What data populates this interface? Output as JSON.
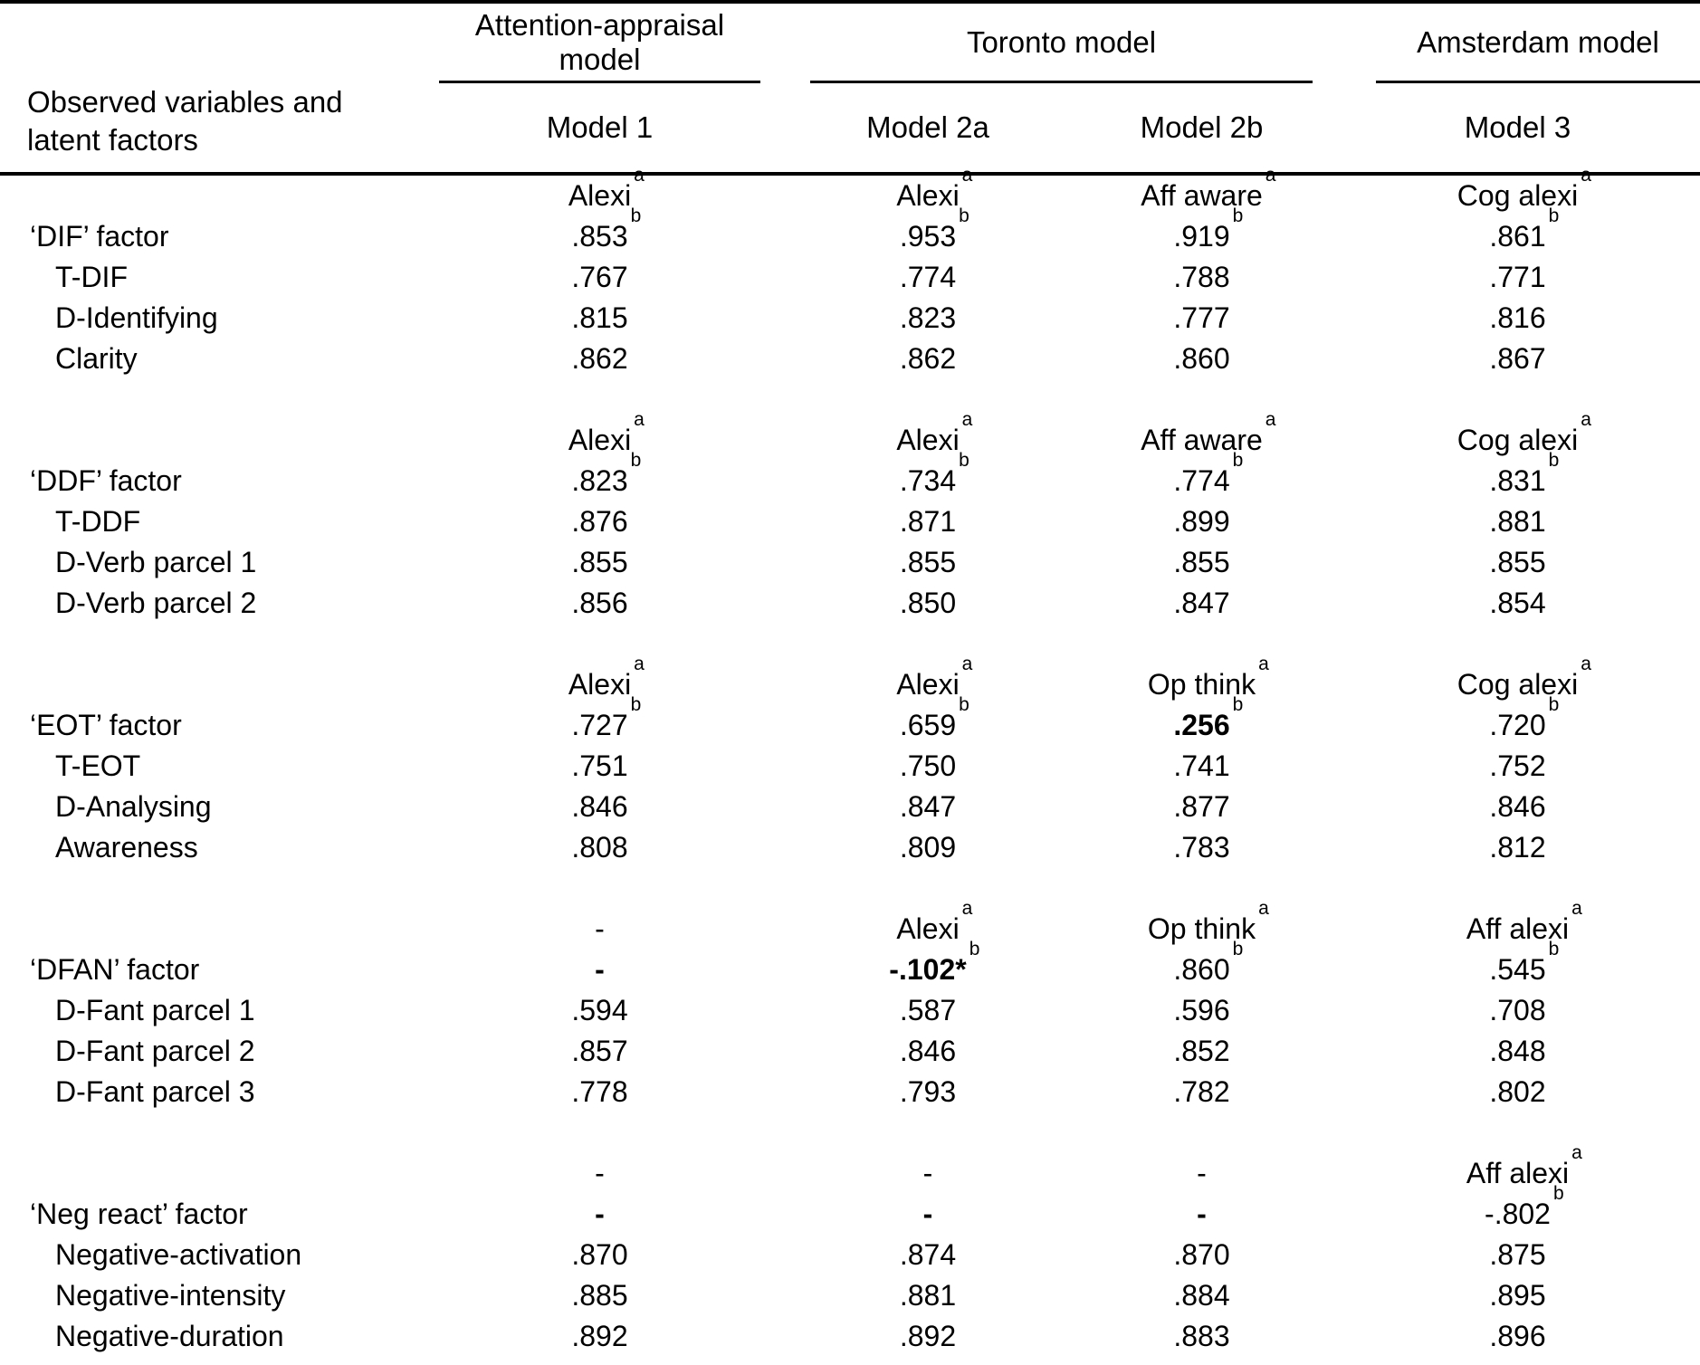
{
  "page": {
    "background": "#ffffff",
    "text_color": "#000000"
  },
  "header": {
    "stub": "Observed variables and latent factors",
    "groups": [
      {
        "label": "Attention-appraisal model"
      },
      {
        "label": "Toronto model"
      },
      {
        "label": "Amsterdam model"
      }
    ],
    "models": [
      "Model 1",
      "Model 2a",
      "Model 2b",
      "Model 3"
    ]
  },
  "blocks": [
    {
      "rows": [
        {
          "label": "",
          "indent": false,
          "cells": [
            {
              "text": "Alexi",
              "sup": "a"
            },
            {
              "text": "Alexi",
              "sup": "a"
            },
            {
              "text": "Aff aware",
              "sup": "a"
            },
            {
              "text": "Cog alexi",
              "sup": "a"
            }
          ]
        },
        {
          "label": "‘DIF’ factor",
          "indent": false,
          "cells": [
            {
              "text": ".853",
              "sup": "b"
            },
            {
              "text": ".953",
              "sup": "b"
            },
            {
              "text": ".919",
              "sup": "b"
            },
            {
              "text": ".861",
              "sup": "b"
            }
          ]
        },
        {
          "label": "T-DIF",
          "indent": true,
          "cells": [
            {
              "text": ".767"
            },
            {
              "text": ".774"
            },
            {
              "text": ".788"
            },
            {
              "text": ".771"
            }
          ]
        },
        {
          "label": "D-Identifying",
          "indent": true,
          "cells": [
            {
              "text": ".815"
            },
            {
              "text": ".823"
            },
            {
              "text": ".777"
            },
            {
              "text": ".816"
            }
          ]
        },
        {
          "label": "Clarity",
          "indent": true,
          "cells": [
            {
              "text": ".862"
            },
            {
              "text": ".862"
            },
            {
              "text": ".860"
            },
            {
              "text": ".867"
            }
          ]
        }
      ]
    },
    {
      "rows": [
        {
          "label": "",
          "indent": false,
          "cells": [
            {
              "text": "Alexi",
              "sup": "a"
            },
            {
              "text": "Alexi",
              "sup": "a"
            },
            {
              "text": "Aff aware",
              "sup": "a"
            },
            {
              "text": "Cog alexi",
              "sup": "a"
            }
          ]
        },
        {
          "label": "‘DDF’ factor",
          "indent": false,
          "cells": [
            {
              "text": ".823",
              "sup": "b"
            },
            {
              "text": ".734",
              "sup": "b"
            },
            {
              "text": ".774",
              "sup": "b"
            },
            {
              "text": ".831",
              "sup": "b"
            }
          ]
        },
        {
          "label": "T-DDF",
          "indent": true,
          "cells": [
            {
              "text": ".876"
            },
            {
              "text": ".871"
            },
            {
              "text": ".899"
            },
            {
              "text": ".881"
            }
          ]
        },
        {
          "label": "D-Verb parcel 1",
          "indent": true,
          "cells": [
            {
              "text": ".855"
            },
            {
              "text": ".855"
            },
            {
              "text": ".855"
            },
            {
              "text": ".855"
            }
          ]
        },
        {
          "label": "D-Verb parcel 2",
          "indent": true,
          "cells": [
            {
              "text": ".856"
            },
            {
              "text": ".850"
            },
            {
              "text": ".847"
            },
            {
              "text": ".854"
            }
          ]
        }
      ]
    },
    {
      "rows": [
        {
          "label": "",
          "indent": false,
          "cells": [
            {
              "text": "Alexi",
              "sup": "a"
            },
            {
              "text": "Alexi",
              "sup": "a"
            },
            {
              "text": "Op think",
              "sup": "a"
            },
            {
              "text": "Cog alexi",
              "sup": "a"
            }
          ]
        },
        {
          "label": "‘EOT’ factor",
          "indent": false,
          "cells": [
            {
              "text": ".727",
              "sup": "b"
            },
            {
              "text": ".659",
              "sup": "b"
            },
            {
              "text": ".256",
              "sup": "b",
              "bold": true
            },
            {
              "text": ".720",
              "sup": "b"
            }
          ]
        },
        {
          "label": "T-EOT",
          "indent": true,
          "cells": [
            {
              "text": ".751"
            },
            {
              "text": ".750"
            },
            {
              "text": ".741"
            },
            {
              "text": ".752"
            }
          ]
        },
        {
          "label": "D-Analysing",
          "indent": true,
          "cells": [
            {
              "text": ".846"
            },
            {
              "text": ".847"
            },
            {
              "text": ".877"
            },
            {
              "text": ".846"
            }
          ]
        },
        {
          "label": "Awareness",
          "indent": true,
          "cells": [
            {
              "text": ".808"
            },
            {
              "text": ".809"
            },
            {
              "text": ".783"
            },
            {
              "text": ".812"
            }
          ]
        }
      ]
    },
    {
      "rows": [
        {
          "label": "",
          "indent": false,
          "cells": [
            {
              "text": "-"
            },
            {
              "text": "Alexi",
              "sup": "a"
            },
            {
              "text": "Op think",
              "sup": "a"
            },
            {
              "text": "Aff alexi",
              "sup": "a"
            }
          ]
        },
        {
          "label": "‘DFAN’ factor",
          "indent": false,
          "cells": [
            {
              "text": "-",
              "bold": true
            },
            {
              "text": "-.102",
              "star": "*",
              "sup": "b",
              "bold": true
            },
            {
              "text": ".860",
              "sup": "b"
            },
            {
              "text": ".545",
              "sup": "b"
            }
          ]
        },
        {
          "label": "D-Fant parcel 1",
          "indent": true,
          "cells": [
            {
              "text": ".594"
            },
            {
              "text": ".587"
            },
            {
              "text": ".596"
            },
            {
              "text": ".708"
            }
          ]
        },
        {
          "label": "D-Fant parcel 2",
          "indent": true,
          "cells": [
            {
              "text": ".857"
            },
            {
              "text": ".846"
            },
            {
              "text": ".852"
            },
            {
              "text": ".848"
            }
          ]
        },
        {
          "label": "D-Fant parcel 3",
          "indent": true,
          "cells": [
            {
              "text": ".778"
            },
            {
              "text": ".793"
            },
            {
              "text": ".782"
            },
            {
              "text": ".802"
            }
          ]
        }
      ]
    },
    {
      "rows": [
        {
          "label": "",
          "indent": false,
          "cells": [
            {
              "text": "-"
            },
            {
              "text": "-"
            },
            {
              "text": "-"
            },
            {
              "text": "Aff alexi",
              "sup": "a"
            }
          ]
        },
        {
          "label": "‘Neg react’ factor",
          "indent": false,
          "cells": [
            {
              "text": "-",
              "bold": true
            },
            {
              "text": "-",
              "bold": true
            },
            {
              "text": "-",
              "bold": true
            },
            {
              "text": "-.802",
              "sup": "b"
            }
          ]
        },
        {
          "label": "Negative-activation",
          "indent": true,
          "cells": [
            {
              "text": ".870"
            },
            {
              "text": ".874"
            },
            {
              "text": ".870"
            },
            {
              "text": ".875"
            }
          ]
        },
        {
          "label": "Negative-intensity",
          "indent": true,
          "cells": [
            {
              "text": ".885"
            },
            {
              "text": ".881"
            },
            {
              "text": ".884"
            },
            {
              "text": ".895"
            }
          ]
        },
        {
          "label": "Negative-duration",
          "indent": true,
          "cells": [
            {
              "text": ".892"
            },
            {
              "text": ".892"
            },
            {
              "text": ".883"
            },
            {
              "text": ".896"
            }
          ]
        }
      ]
    }
  ]
}
